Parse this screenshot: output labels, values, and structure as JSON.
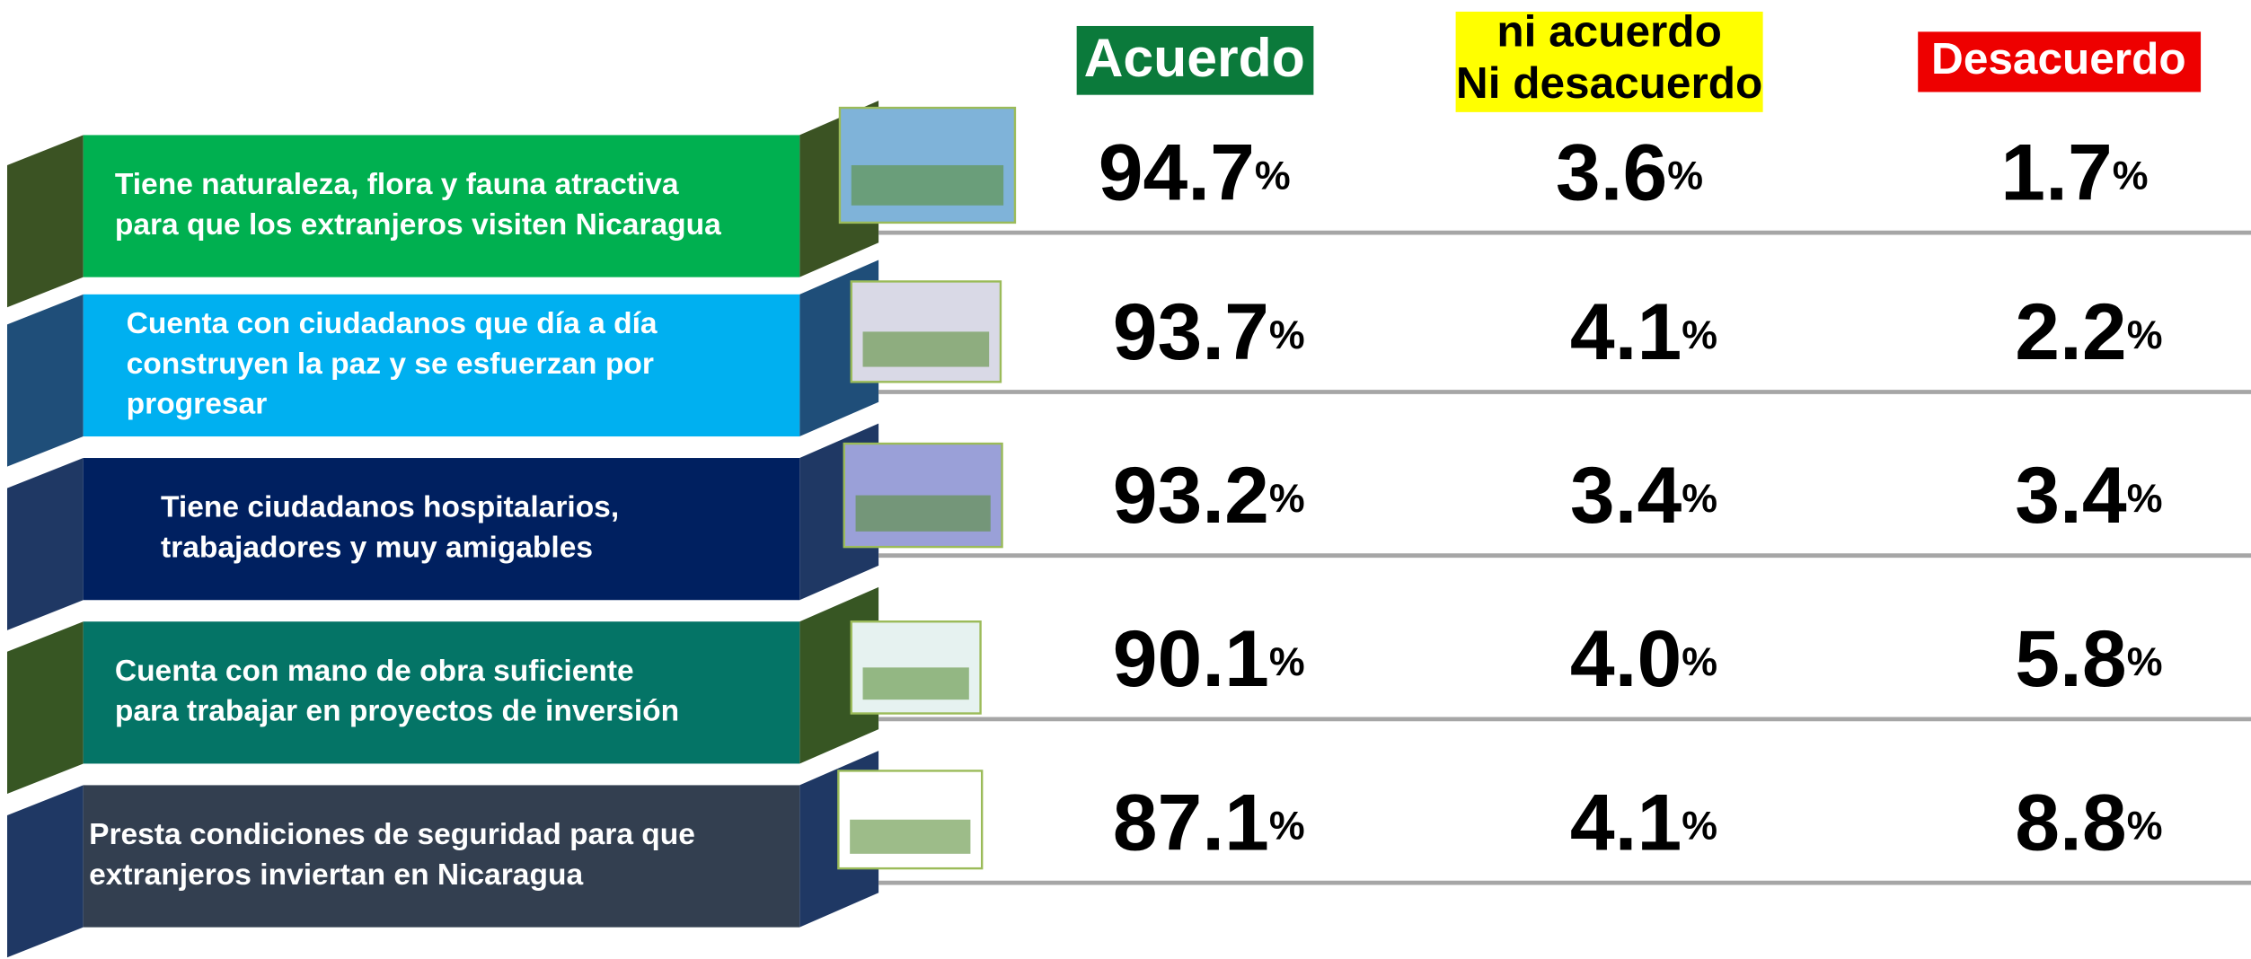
{
  "header": {
    "columns": [
      [
        "Acuerdo"
      ],
      [
        "ni acuerdo",
        "Ni desacuerdo"
      ],
      [
        "Desacuerdo"
      ]
    ]
  },
  "table": {
    "rows": [
      {
        "label": [
          "Tiene naturaleza, flora y fauna atractiva",
          "para que los extranjeros visiten Nicaragua"
        ],
        "cells": [
          "94.7%",
          "3.6%",
          "1.7%"
        ]
      },
      {
        "label": [
          "Cuenta con ciudadanos que día a día",
          "construyen la paz y se esfuerzan por",
          "progresar"
        ],
        "cells": [
          "93.7%",
          "4.1%",
          "2.2%"
        ]
      },
      {
        "label": [
          "Tiene ciudadanos hospitalarios,",
          "trabajadores y muy amigables"
        ],
        "cells": [
          "93.2%",
          "3.4%",
          "3.4%"
        ]
      },
      {
        "label": [
          "Cuenta con mano de obra suficiente",
          "para trabajar en proyectos de inversión"
        ],
        "cells": [
          "90.1%",
          "4.0%",
          "5.8%"
        ]
      },
      {
        "label": [
          "Presta condiciones de seguridad para que",
          "extranjeros inviertan en Nicaragua"
        ],
        "cells": [
          "87.1%",
          "4.1%",
          "8.8%"
        ]
      }
    ]
  }
}
